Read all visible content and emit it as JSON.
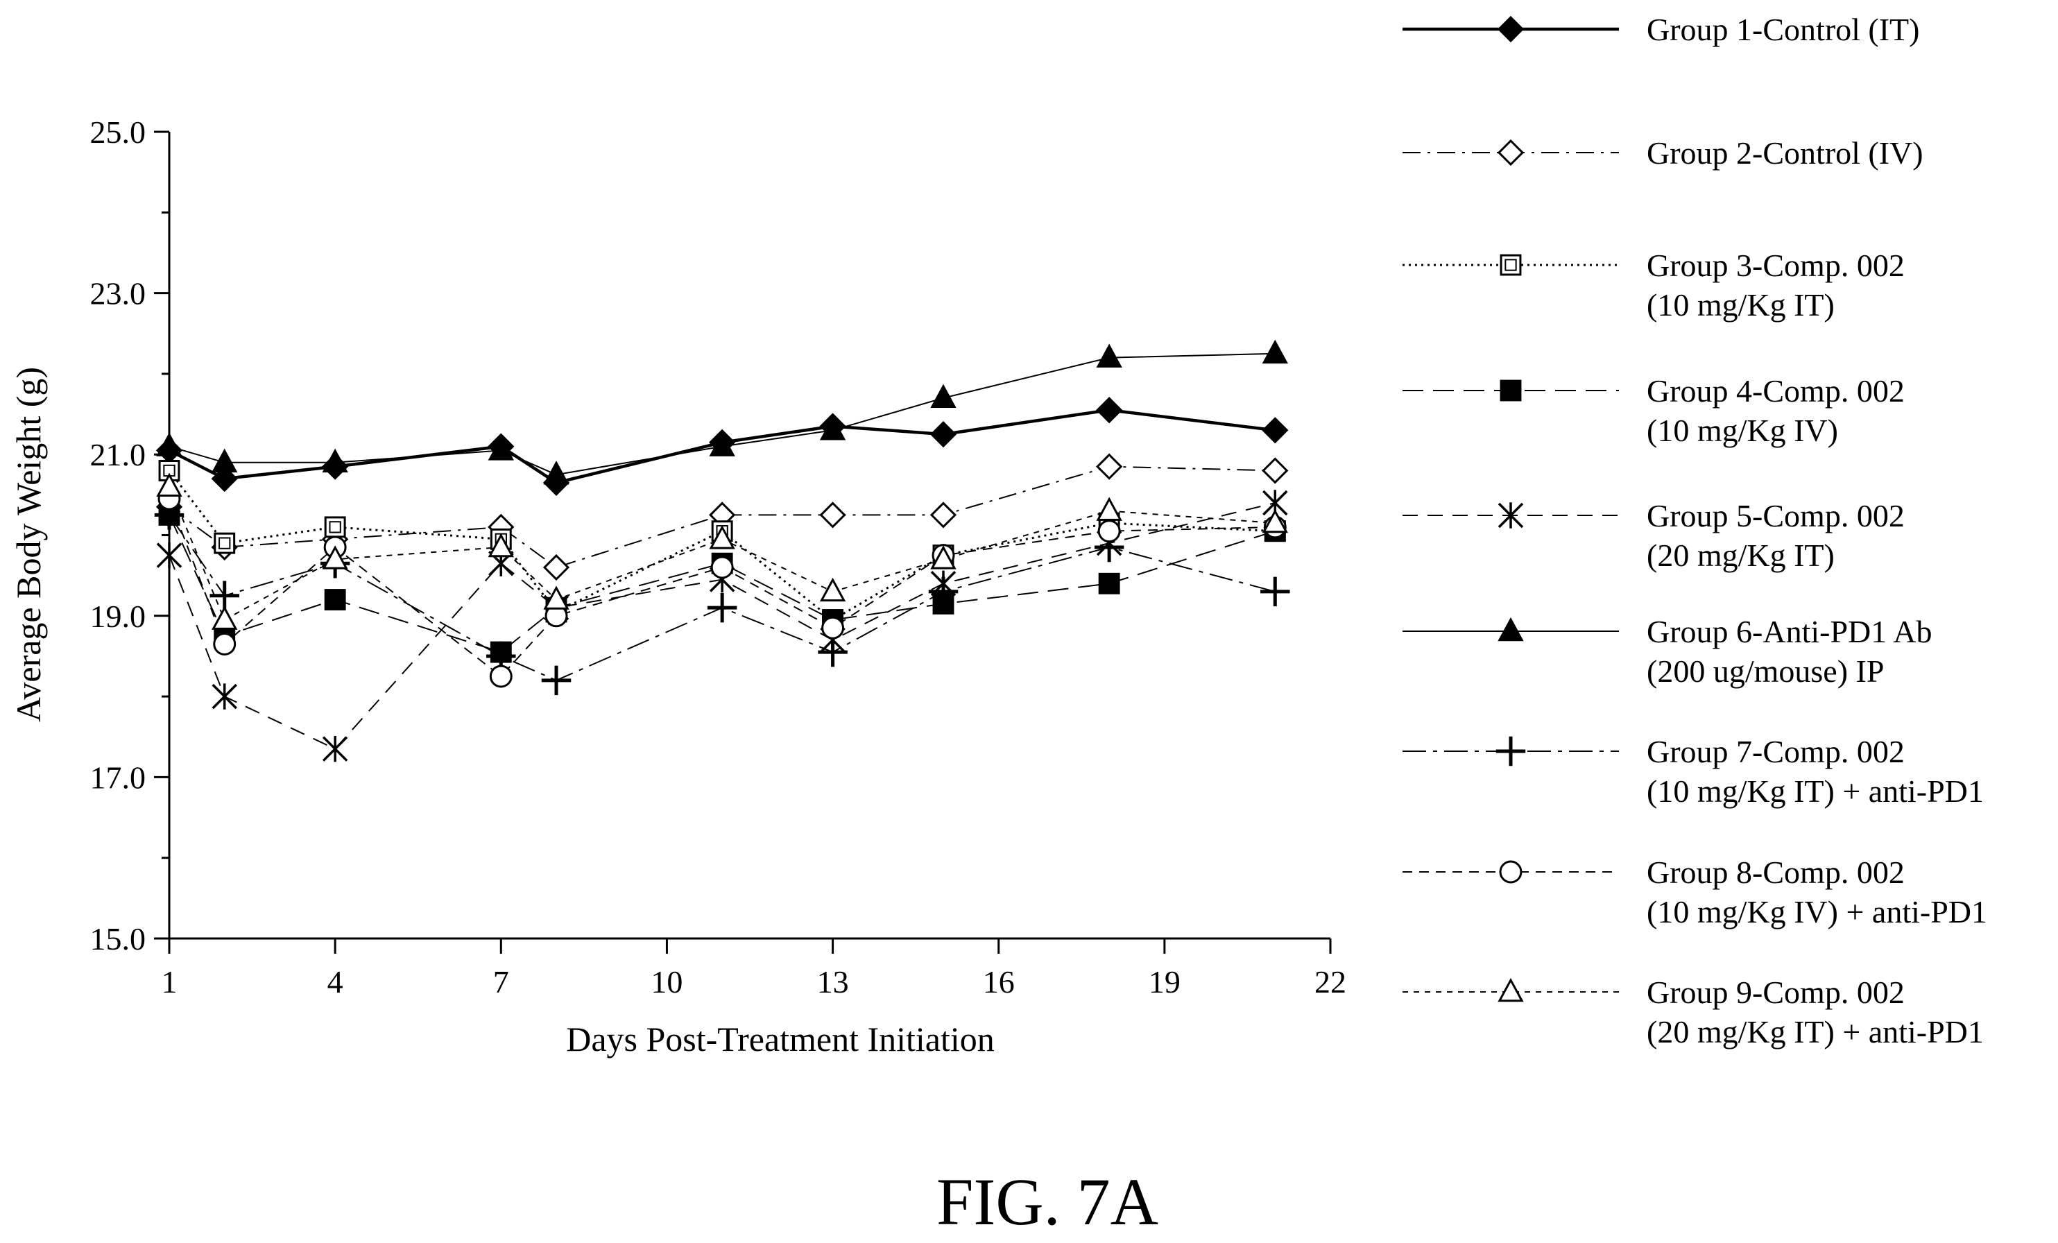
{
  "chart_data": {
    "type": "line",
    "figure_label": "FIG. 7A",
    "xlabel": "Days Post-Treatment Initiation",
    "ylabel": "Average Body Weight (g)",
    "xlim": [
      1,
      22
    ],
    "ylim": [
      15.0,
      25.0
    ],
    "x_ticks": [
      "1",
      "4",
      "7",
      "10",
      "13",
      "16",
      "19",
      "22"
    ],
    "y_ticks": [
      "15.0",
      "17.0",
      "19.0",
      "21.0",
      "23.0",
      "25.0"
    ],
    "legend_position": "right",
    "x": [
      1,
      2,
      4,
      7,
      8,
      11,
      13,
      15,
      18,
      21
    ],
    "series": [
      {
        "name": "Group 1-Control (IT)",
        "name_lines": [
          "Group 1-Control (IT)"
        ],
        "marker": "diamond-filled",
        "line": "solid-thick",
        "values": [
          21.05,
          20.7,
          20.85,
          21.1,
          20.65,
          21.15,
          21.35,
          21.25,
          21.55,
          21.3
        ]
      },
      {
        "name": "Group 2-Control (IV)",
        "name_lines": [
          "Group 2-Control (IV)"
        ],
        "marker": "diamond-open",
        "line": "dashdot",
        "values": [
          20.35,
          19.85,
          19.95,
          20.1,
          19.6,
          20.25,
          20.25,
          20.25,
          20.85,
          20.8
        ]
      },
      {
        "name": "Group 3-Comp. 002 (10 mg/Kg IT)",
        "name_lines": [
          "Group 3-Comp. 002",
          "(10 mg/Kg IT)"
        ],
        "marker": "square-open",
        "line": "dotted",
        "values": [
          20.8,
          19.9,
          20.1,
          19.95,
          19.05,
          20.05,
          18.95,
          19.75,
          20.15,
          20.05
        ]
      },
      {
        "name": "Group 4-Comp. 002 (10 mg/Kg IV)",
        "name_lines": [
          "Group 4-Comp. 002",
          "(10 mg/Kg IV)"
        ],
        "marker": "square-filled",
        "line": "longdash",
        "values": [
          20.25,
          18.75,
          19.2,
          18.55,
          19.1,
          19.65,
          18.95,
          19.15,
          19.4,
          20.05
        ]
      },
      {
        "name": "Group 5-Comp. 002 (20 mg/Kg IT)",
        "name_lines": [
          "Group 5-Comp. 002",
          "(20 mg/Kg IT)"
        ],
        "marker": "asterisk",
        "line": "dashed",
        "values": [
          19.75,
          18.0,
          17.35,
          19.65,
          19.1,
          19.45,
          18.7,
          19.4,
          19.9,
          20.4
        ]
      },
      {
        "name": "Group 6-Anti-PD1 Ab (200 ug/mouse) IP",
        "name_lines": [
          "Group 6-Anti-PD1 Ab",
          "(200 ug/mouse) IP"
        ],
        "marker": "triangle-filled",
        "line": "solid-thin",
        "values": [
          21.1,
          20.9,
          20.9,
          21.05,
          20.75,
          21.1,
          21.3,
          21.7,
          22.2,
          22.25
        ]
      },
      {
        "name": "Group 7-Comp. 002 (10 mg/Kg IT) + anti-PD1",
        "name_lines": [
          "Group 7-Comp. 002",
          "(10 mg/Kg IT) + anti-PD1"
        ],
        "marker": "plus",
        "line": "dashdot2",
        "values": [
          20.25,
          19.25,
          19.65,
          18.5,
          18.2,
          19.1,
          18.55,
          19.3,
          19.85,
          19.3
        ]
      },
      {
        "name": "Group 8-Comp. 002 (10 mg/Kg IV) + anti-PD1",
        "name_lines": [
          "Group 8-Comp. 002",
          "(10 mg/Kg IV) + anti-PD1"
        ],
        "marker": "circle-open",
        "line": "gapdash",
        "values": [
          20.45,
          18.65,
          19.85,
          18.25,
          19.0,
          19.6,
          18.85,
          19.75,
          20.05,
          20.1
        ]
      },
      {
        "name": "Group 9-Comp. 002 (20 mg/Kg IT) + anti-PD1",
        "name_lines": [
          "Group 9-Comp. 002",
          "(20 mg/Kg IT) + anti-PD1"
        ],
        "marker": "triangle-open",
        "line": "finedash",
        "values": [
          20.6,
          18.95,
          19.7,
          19.85,
          19.2,
          19.95,
          19.3,
          19.7,
          20.3,
          20.15
        ]
      }
    ]
  }
}
